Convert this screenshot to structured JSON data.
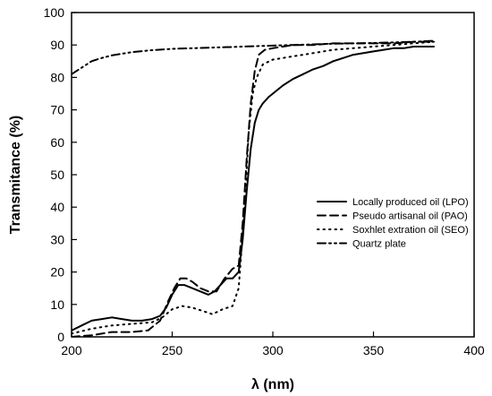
{
  "chart_data": {
    "type": "line",
    "title": "",
    "xlabel": "λ (nm)",
    "ylabel": "Transmitance (%)",
    "xlim": [
      200,
      400
    ],
    "ylim": [
      0,
      100
    ],
    "x_ticks": [
      "200",
      "250",
      "300",
      "350",
      "400"
    ],
    "y_ticks": [
      "0",
      "10",
      "20",
      "30",
      "40",
      "50",
      "60",
      "70",
      "80",
      "90",
      "100"
    ],
    "grid": false,
    "legend_position": "center-right",
    "series": [
      {
        "name": "Locally produced oil (LPO)",
        "line_style": "solid",
        "color": "#000000",
        "x": [
          200,
          205,
          210,
          215,
          220,
          225,
          230,
          235,
          240,
          244,
          247,
          250,
          253,
          256,
          260,
          264,
          268,
          271,
          274,
          277,
          280,
          283,
          285,
          287,
          289,
          291,
          293,
          295,
          298,
          300,
          305,
          310,
          315,
          320,
          325,
          330,
          335,
          340,
          345,
          350,
          355,
          360,
          365,
          370,
          375,
          380
        ],
        "y": [
          2,
          3.5,
          5,
          5.5,
          6,
          5.5,
          5,
          5,
          5.5,
          6.5,
          9,
          13,
          16,
          16,
          15,
          14,
          13,
          14,
          16,
          18,
          18,
          20,
          30,
          45,
          58,
          66,
          70,
          72,
          74,
          75,
          77.5,
          79.5,
          81,
          82.5,
          83.5,
          85,
          86,
          87,
          87.5,
          88,
          88.5,
          89,
          89,
          89.5,
          89.5,
          89.5
        ]
      },
      {
        "name": "Pseudo artisanal oil (PAO)",
        "line_style": "dashed",
        "color": "#000000",
        "x": [
          200,
          210,
          220,
          230,
          238,
          244,
          248,
          251,
          254,
          257,
          260,
          264,
          268,
          272,
          276,
          280,
          283,
          285,
          287,
          289,
          291,
          293,
          296,
          300,
          305,
          310,
          320,
          330,
          340,
          350,
          360,
          370,
          380
        ],
        "y": [
          0,
          0.5,
          1.5,
          1.5,
          2,
          5,
          11,
          15,
          18,
          18,
          17,
          15,
          14,
          14,
          18,
          21,
          22,
          35,
          55,
          72,
          82,
          87,
          88.5,
          89,
          89.5,
          90,
          90,
          90.5,
          90.5,
          90.5,
          90.5,
          91,
          91
        ]
      },
      {
        "name": "Soxhlet extration oil (SEO)",
        "line_style": "dotted",
        "color": "#000000",
        "x": [
          200,
          210,
          220,
          230,
          240,
          245,
          250,
          255,
          260,
          265,
          270,
          275,
          280,
          283,
          286,
          288,
          290,
          292,
          295,
          300,
          305,
          310,
          320,
          330,
          340,
          350,
          360,
          370,
          380
        ],
        "y": [
          1,
          2.5,
          3.5,
          4,
          4.5,
          6,
          8.5,
          9.5,
          9,
          8,
          7,
          8.5,
          9.5,
          15,
          40,
          63,
          75,
          80,
          84,
          85.5,
          86,
          86.5,
          87.5,
          88.5,
          89,
          89.5,
          90,
          90.5,
          91
        ]
      },
      {
        "name": "Quartz plate",
        "line_style": "dash-dot-dot",
        "color": "#000000",
        "x": [
          200,
          205,
          210,
          215,
          220,
          230,
          240,
          250,
          260,
          270,
          280,
          290,
          300,
          310,
          320,
          330,
          340,
          350,
          360,
          370,
          380
        ],
        "y": [
          81,
          83,
          85,
          86,
          86.8,
          87.8,
          88.4,
          88.8,
          89,
          89.2,
          89.4,
          89.6,
          89.8,
          90,
          90.2,
          90.4,
          90.5,
          90.6,
          90.8,
          91,
          91.3
        ]
      }
    ]
  }
}
